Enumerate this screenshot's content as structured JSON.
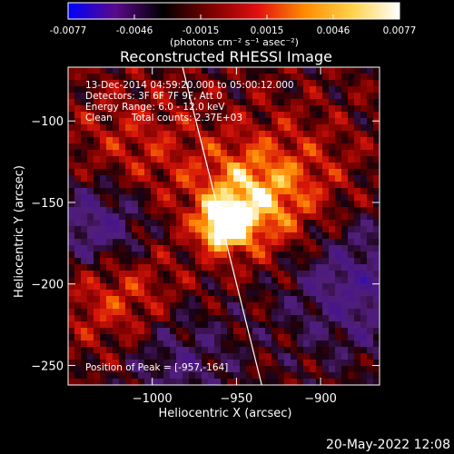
{
  "colorbar": {
    "ticks": [
      "-0.0077",
      "-0.0046",
      "-0.0015",
      "0.0015",
      "0.0046",
      "0.0077"
    ],
    "unit_label": "(photons cm⁻² s⁻¹ asec⁻²)",
    "colors": [
      "#0000ff",
      "#5a0a8a",
      "#000000",
      "#7a0000",
      "#e01010",
      "#ff8c00",
      "#ffd24a",
      "#ffffff"
    ]
  },
  "chart_data": {
    "type": "heatmap",
    "title": "Reconstructed RHESSI Image",
    "xlabel": "Heliocentric X (arcsec)",
    "ylabel": "Heliocentric Y (arcsec)",
    "xlim": [
      -1050,
      -865
    ],
    "ylim": [
      -262,
      -67
    ],
    "x_ticks": [
      -1000,
      -950,
      -900
    ],
    "x_tick_labels": [
      "−1000",
      "−950",
      "−900"
    ],
    "y_ticks": [
      -100,
      -150,
      -200,
      -250
    ],
    "y_tick_labels": [
      "−100",
      "−150",
      "−200",
      "−250"
    ],
    "peak": [
      -957,
      -164
    ],
    "line": {
      "from": [
        -982,
        -67
      ],
      "to": [
        -935,
        -262
      ]
    },
    "annotations": {
      "time": "13-Dec-2014 04:59:20.000 to 05:00:12.000",
      "detectors": "Detectors: 3F 6F 7F 9F, Att 0",
      "energy": "Energy Range: 6.0 - 12.0 keV",
      "method": "Clean",
      "counts": "Total counts: 2.37E+03",
      "peak_label": "Position of Peak = [-957,-164]"
    },
    "grid": false
  },
  "footer": {
    "date": "20-May-2022 12:08"
  }
}
